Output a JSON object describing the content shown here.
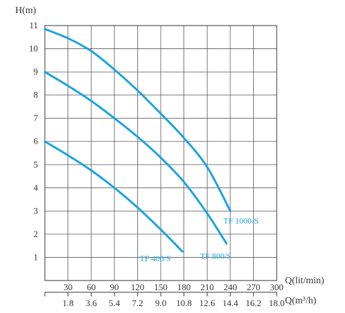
{
  "chart_data": {
    "type": "line",
    "ylabel": "H(m)",
    "xlabel": "Q(lit/min)",
    "xlabel2": "Q(m³/h)",
    "xlim": [
      0,
      300
    ],
    "ylim": [
      0,
      11
    ],
    "grid": true,
    "x_ticks": [
      "30",
      "60",
      "90",
      "120",
      "150",
      "180",
      "210",
      "240",
      "270",
      "300"
    ],
    "x_ticks_values": [
      30,
      60,
      90,
      120,
      150,
      180,
      210,
      240,
      270,
      300
    ],
    "x2_ticks": [
      "1.8",
      "3.6",
      "5.4",
      "7.2",
      "9.0",
      "10.8",
      "12.6",
      "14.4",
      "16.2",
      "18.0"
    ],
    "y_ticks": [
      "1",
      "2",
      "3",
      "4",
      "5",
      "6",
      "7",
      "8",
      "9",
      "10",
      "11"
    ],
    "y_ticks_values": [
      1,
      2,
      3,
      4,
      5,
      6,
      7,
      8,
      9,
      10,
      11
    ],
    "series_color": "#1aa3e0",
    "label_color": "#1aa3e0",
    "series": [
      {
        "name": "TF 1000/S",
        "x": [
          0,
          30,
          60,
          90,
          120,
          150,
          180,
          210,
          240
        ],
        "values": [
          10.85,
          10.45,
          9.9,
          9.1,
          8.2,
          7.2,
          6.15,
          4.9,
          3.0
        ]
      },
      {
        "name": "TF 800/S",
        "x": [
          0,
          30,
          60,
          90,
          120,
          150,
          180,
          210,
          235
        ],
        "values": [
          9.0,
          8.4,
          7.75,
          7.0,
          6.2,
          5.3,
          4.25,
          2.9,
          1.6
        ]
      },
      {
        "name": "TF 400/S",
        "x": [
          0,
          30,
          60,
          90,
          120,
          150,
          178
        ],
        "values": [
          6.0,
          5.4,
          4.75,
          4.0,
          3.15,
          2.2,
          1.25
        ]
      }
    ]
  }
}
